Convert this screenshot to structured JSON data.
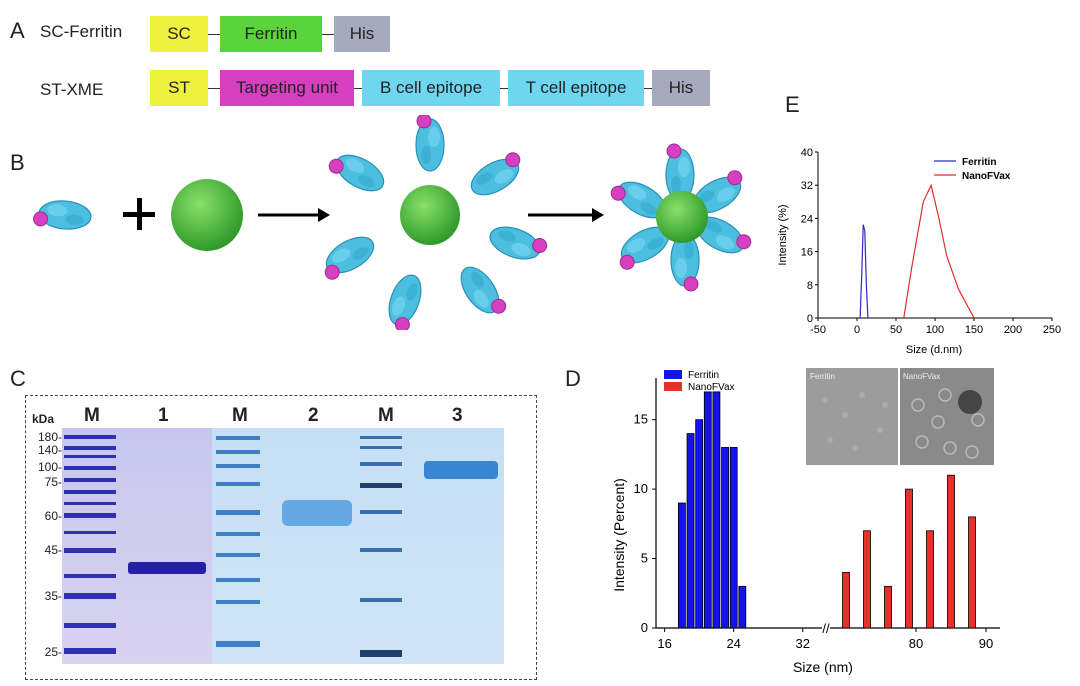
{
  "panels": {
    "A": "A",
    "B": "B",
    "C": "C",
    "D": "D",
    "E": "E"
  },
  "constructs": [
    {
      "label": "SC-Ferritin",
      "parts": [
        {
          "text": "SC",
          "color": "#eef23f"
        },
        {
          "text": "Ferritin",
          "color": "#5bd33a"
        },
        {
          "text": "His",
          "color": "#a7a9bd"
        }
      ]
    },
    {
      "label": "ST-XME",
      "parts": [
        {
          "text": "ST",
          "color": "#eef23f"
        },
        {
          "text": "Targeting unit",
          "color": "#d63fbf"
        },
        {
          "text": "B cell epitope",
          "color": "#6fd6ef"
        },
        {
          "text": "T cell epitope",
          "color": "#6fd6ef"
        },
        {
          "text": "His",
          "color": "#a7a9bd"
        }
      ]
    }
  ],
  "gel": {
    "unit": "kDa",
    "lanes": [
      "M",
      "1",
      "M",
      "2",
      "M",
      "3"
    ],
    "markers": [
      "180-",
      "140-",
      "100-",
      "75-",
      "60-",
      "45-",
      "35-",
      "25-"
    ]
  },
  "chart_data": [
    {
      "panel": "D",
      "type": "bar",
      "xlabel": "Size (nm)",
      "ylabel": "Intensity (Percent)",
      "xticks": [
        "16",
        "24",
        "32",
        "80",
        "90"
      ],
      "yticks": [
        "0",
        "5",
        "10",
        "15"
      ],
      "ylim": [
        0,
        18
      ],
      "axis_break": "//",
      "series": [
        {
          "name": "Ferritin",
          "color": "#1414e6",
          "x": [
            18,
            19,
            20,
            21,
            22,
            23,
            24,
            25
          ],
          "values": [
            9,
            14,
            15,
            17,
            17,
            13,
            13,
            3
          ]
        },
        {
          "name": "NanoFVax",
          "color": "#e8302a",
          "x": [
            70,
            73,
            76,
            79,
            82,
            85,
            88
          ],
          "values": [
            4,
            7,
            3,
            10,
            7,
            11,
            8
          ]
        }
      ],
      "inset_labels": [
        "Ferritin",
        "NanoFVax"
      ]
    },
    {
      "panel": "E",
      "type": "line",
      "xlabel": "Size (d.nm)",
      "ylabel": "Intensity (%)",
      "xticks": [
        "-50",
        "0",
        "50",
        "100",
        "150",
        "200",
        "250"
      ],
      "yticks": [
        "0",
        "8",
        "16",
        "24",
        "32",
        "40"
      ],
      "xlim": [
        -50,
        250
      ],
      "ylim": [
        0,
        40
      ],
      "legend": "top-right",
      "series": [
        {
          "name": "Ferritin",
          "color": "#2a2acb",
          "x": [
            4,
            6,
            8,
            10,
            12,
            14
          ],
          "y": [
            0,
            10,
            22.5,
            21,
            8,
            0
          ]
        },
        {
          "name": "NanoFVax",
          "color": "#e0302a",
          "x": [
            60,
            70,
            85,
            95,
            105,
            115,
            130,
            150
          ],
          "y": [
            0,
            12,
            28,
            32,
            24,
            15,
            7,
            0
          ]
        }
      ]
    }
  ]
}
